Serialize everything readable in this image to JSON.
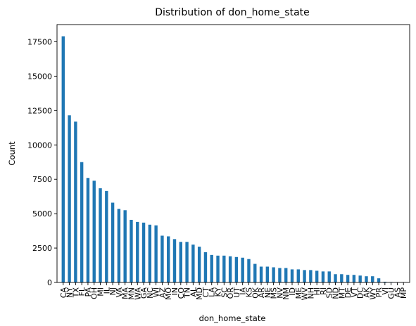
{
  "chart_data": {
    "type": "bar",
    "title": "Distribution of don_home_state",
    "xlabel": "don_home_state",
    "ylabel": "Count",
    "ylim": [
      0,
      18750
    ],
    "yticks": [
      0,
      2500,
      5000,
      7500,
      10000,
      12500,
      15000,
      17500
    ],
    "bar_color": "#1f77b4",
    "grid": false,
    "legend": "none",
    "categories": [
      "CA",
      "NY",
      "TX",
      "FL",
      "PA",
      "OH",
      "MI",
      "IL",
      "NJ",
      "VA",
      "MA",
      "MN",
      "WA",
      "GA",
      "NC",
      "WI",
      "AZ",
      "MO",
      "IN",
      "CO",
      "TN",
      "AL",
      "MD",
      "CT",
      "LA",
      "KY",
      "SC",
      "OR",
      "UT",
      "IA",
      "KS",
      "OK",
      "AR",
      "NE",
      "MS",
      "NV",
      "NM",
      "ID",
      "ME",
      "WV",
      "NH",
      "HI",
      "RI",
      "SD",
      "ND",
      "MT",
      "DE",
      "VT",
      "DC",
      "AK",
      "WY",
      "PR",
      "VI",
      "GU",
      "AS",
      "MP"
    ],
    "values": [
      17900,
      12150,
      11700,
      8750,
      7600,
      7400,
      6850,
      6650,
      5800,
      5350,
      5250,
      4550,
      4400,
      4350,
      4200,
      4150,
      3400,
      3350,
      3150,
      2950,
      2950,
      2750,
      2600,
      2200,
      2000,
      1950,
      1950,
      1900,
      1850,
      1800,
      1700,
      1350,
      1150,
      1150,
      1100,
      1050,
      1050,
      950,
      950,
      900,
      900,
      850,
      800,
      800,
      600,
      600,
      550,
      550,
      500,
      450,
      450,
      300,
      50,
      30,
      20,
      10
    ]
  }
}
